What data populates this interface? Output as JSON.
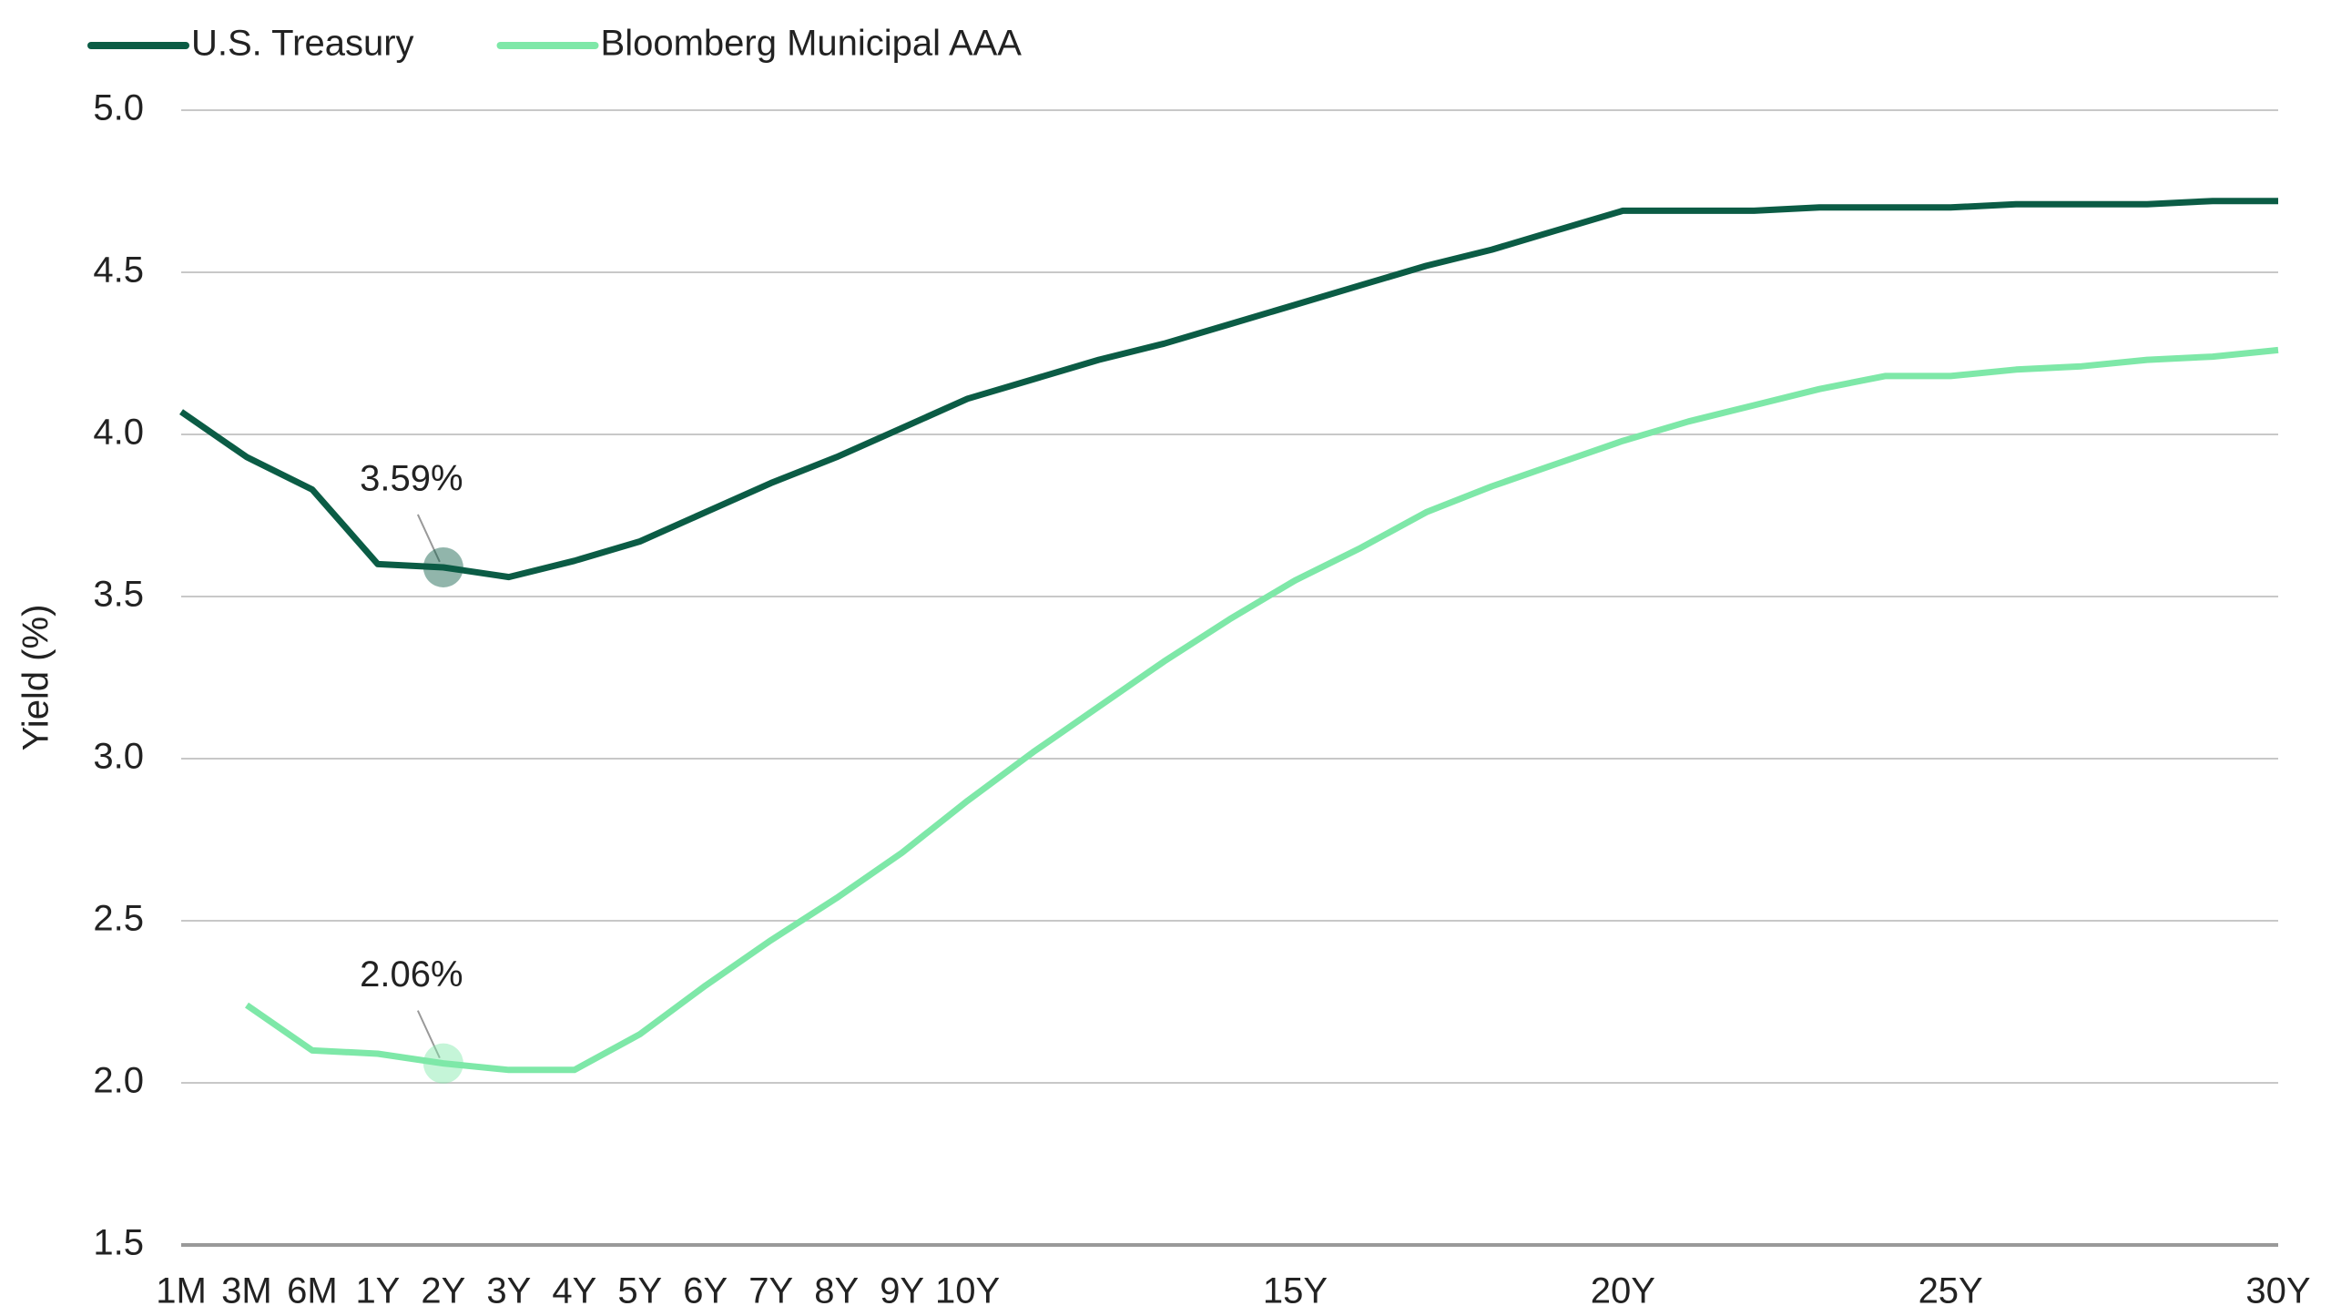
{
  "chart_data": {
    "type": "line",
    "y_axis_label": "Yield (%)",
    "categories": [
      "1M",
      "3M",
      "6M",
      "1Y",
      "2Y",
      "3Y",
      "4Y",
      "5Y",
      "6Y",
      "7Y",
      "8Y",
      "9Y",
      "10Y",
      null,
      null,
      null,
      null,
      "15Y",
      null,
      null,
      null,
      null,
      "20Y",
      null,
      null,
      null,
      null,
      "25Y",
      null,
      null,
      null,
      null,
      "30Y"
    ],
    "series": [
      {
        "name": "U.S. Treasury",
        "color": "#0b5c45",
        "values": [
          4.07,
          3.93,
          3.83,
          3.6,
          3.59,
          3.56,
          3.61,
          3.67,
          3.76,
          3.85,
          3.93,
          4.02,
          4.11,
          4.17,
          4.23,
          4.28,
          4.34,
          4.4,
          4.46,
          4.52,
          4.57,
          4.63,
          4.69,
          4.69,
          4.69,
          4.7,
          4.7,
          4.7,
          4.71,
          4.71,
          4.71,
          4.72,
          4.72
        ],
        "value_labels": [
          null,
          null,
          null,
          null,
          "3.59%",
          null,
          null,
          null,
          null,
          null,
          null,
          null,
          null,
          null,
          null,
          null,
          null,
          null,
          null,
          null,
          null,
          null,
          null,
          null,
          null,
          null,
          null,
          null,
          null,
          null,
          null,
          null,
          null
        ]
      },
      {
        "name": "Bloomberg Municipal AAA",
        "color": "#7ee8a8",
        "values": [
          null,
          2.24,
          2.1,
          2.09,
          2.06,
          2.04,
          2.04,
          2.15,
          2.3,
          2.44,
          2.57,
          2.71,
          2.87,
          3.02,
          3.16,
          3.3,
          3.43,
          3.55,
          3.65,
          3.76,
          3.84,
          3.91,
          3.98,
          4.04,
          4.09,
          4.14,
          4.18,
          4.18,
          4.2,
          4.21,
          4.23,
          4.24,
          4.26
        ],
        "value_labels": [
          null,
          null,
          null,
          null,
          "2.06%",
          null,
          null,
          null,
          null,
          null,
          null,
          null,
          null,
          null,
          null,
          null,
          null,
          null,
          null,
          null,
          null,
          null,
          null,
          null,
          null,
          null,
          null,
          null,
          null,
          null,
          null,
          null,
          null
        ]
      }
    ],
    "ylim": [
      1.5,
      5.0
    ],
    "yticks": [
      1.5,
      {
        "value": 2,
        "label": "2.0"
      },
      2.5,
      {
        "value": 3,
        "label": "3.0"
      },
      3.5,
      {
        "value": 4,
        "label": "4.0"
      },
      4.5,
      {
        "value": 5,
        "label": "5.0"
      }
    ],
    "grid": true,
    "legend": "top-left"
  }
}
